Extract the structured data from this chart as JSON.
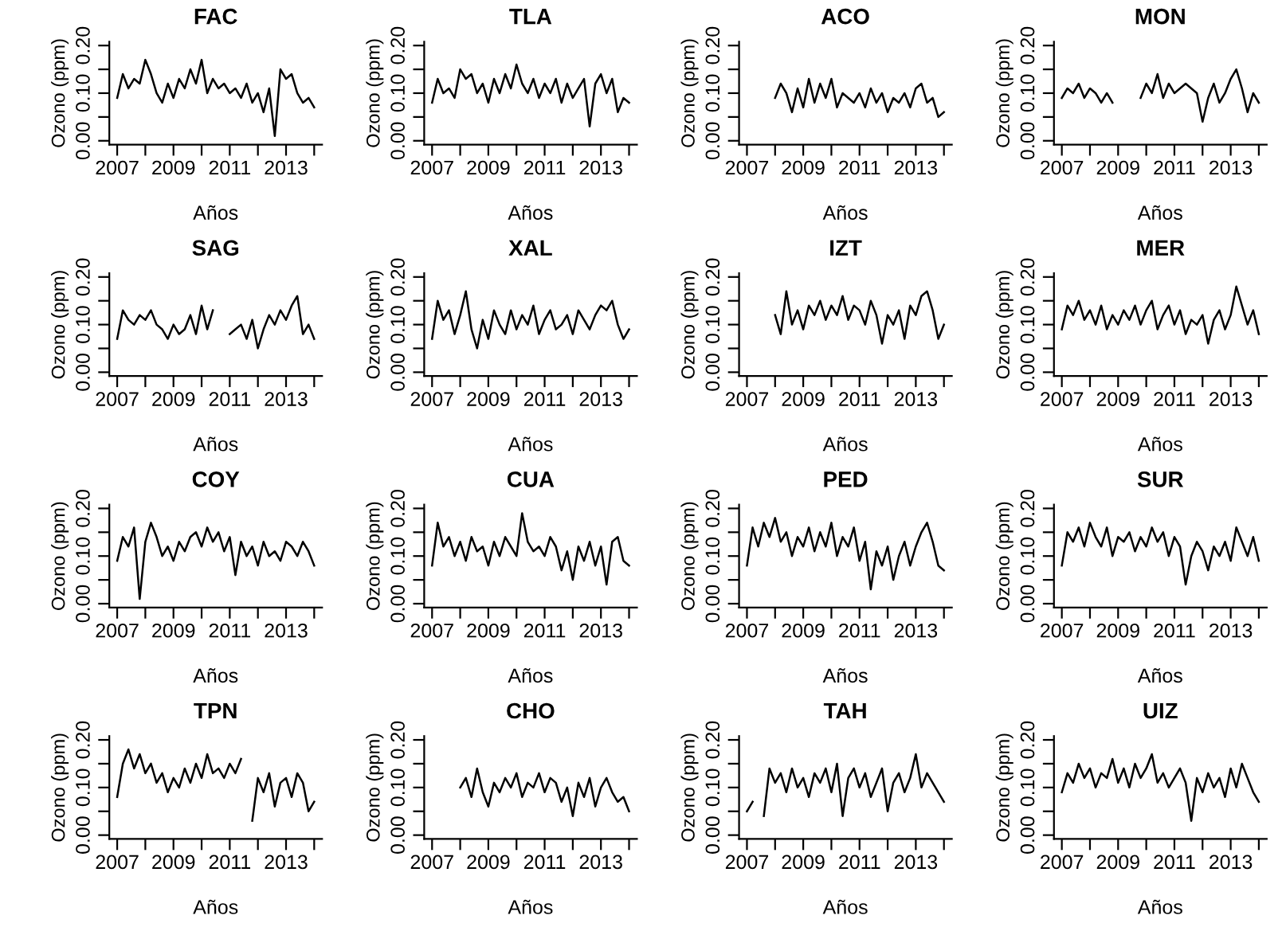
{
  "chart_data": [
    {
      "type": "line",
      "title": "FAC",
      "xlabel": "Años",
      "ylabel": "Ozono (ppm)",
      "xlim": [
        2006.72,
        2014.28
      ],
      "ylim": [
        -0.008,
        0.208
      ],
      "xticks": [
        2007,
        {
          "value": 2008,
          "label": null
        },
        2009,
        {
          "value": 2010,
          "label": null
        },
        2011,
        {
          "value": 2012,
          "label": null
        },
        2013,
        {
          "value": 2014,
          "label": null
        }
      ],
      "yticks": [
        {
          "value": 0,
          "label": "0.00"
        },
        {
          "value": 0.05,
          "label": null
        },
        {
          "value": 0.1,
          "label": "0.10"
        },
        {
          "value": 0.15,
          "label": null
        },
        {
          "value": 0.2,
          "label": "0.20"
        }
      ],
      "x": [
        2007.0,
        2007.2,
        2007.4,
        2007.6,
        2007.8,
        2008.0,
        2008.2,
        2008.4,
        2008.6,
        2008.8,
        2009.0,
        2009.2,
        2009.4,
        2009.6,
        2009.8,
        2010.0,
        2010.2,
        2010.4,
        2010.6,
        2010.8,
        2011.0,
        2011.2,
        2011.4,
        2011.6,
        2011.8,
        2012.0,
        2012.2,
        2012.4,
        2012.6,
        2012.8,
        2013.0,
        2013.2,
        2013.4,
        2013.6,
        2013.8,
        2014.0
      ],
      "series": [
        {
          "color": "#000000",
          "values": [
            0.09,
            0.14,
            0.11,
            0.13,
            0.12,
            0.17,
            0.14,
            0.1,
            0.08,
            0.12,
            0.09,
            0.13,
            0.11,
            0.15,
            0.12,
            0.17,
            0.1,
            0.13,
            0.11,
            0.12,
            0.1,
            0.11,
            0.09,
            0.12,
            0.08,
            0.1,
            0.06,
            0.11,
            0.01,
            0.15,
            0.13,
            0.14,
            0.1,
            0.08,
            0.09,
            0.07
          ]
        }
      ]
    },
    {
      "type": "line",
      "title": "TLA",
      "xlabel": "Años",
      "ylabel": "Ozono (ppm)",
      "xlim": [
        2006.72,
        2014.28
      ],
      "ylim": [
        -0.008,
        0.208
      ],
      "xticks": [
        2007,
        {
          "value": 2008,
          "label": null
        },
        2009,
        {
          "value": 2010,
          "label": null
        },
        2011,
        {
          "value": 2012,
          "label": null
        },
        2013,
        {
          "value": 2014,
          "label": null
        }
      ],
      "yticks": [
        {
          "value": 0,
          "label": "0.00"
        },
        {
          "value": 0.05,
          "label": null
        },
        {
          "value": 0.1,
          "label": "0.10"
        },
        {
          "value": 0.15,
          "label": null
        },
        {
          "value": 0.2,
          "label": "0.20"
        }
      ],
      "x": [
        2007.0,
        2007.2,
        2007.4,
        2007.6,
        2007.8,
        2008.0,
        2008.2,
        2008.4,
        2008.6,
        2008.8,
        2009.0,
        2009.2,
        2009.4,
        2009.6,
        2009.8,
        2010.0,
        2010.2,
        2010.4,
        2010.6,
        2010.8,
        2011.0,
        2011.2,
        2011.4,
        2011.6,
        2011.8,
        2012.0,
        2012.2,
        2012.4,
        2012.6,
        2012.8,
        2013.0,
        2013.2,
        2013.4,
        2013.6,
        2013.8,
        2014.0
      ],
      "series": [
        {
          "color": "#000000",
          "values": [
            0.08,
            0.13,
            0.1,
            0.11,
            0.09,
            0.15,
            0.13,
            0.14,
            0.1,
            0.12,
            0.08,
            0.13,
            0.1,
            0.14,
            0.11,
            0.16,
            0.12,
            0.1,
            0.13,
            0.09,
            0.12,
            0.1,
            0.13,
            0.08,
            0.12,
            0.09,
            0.11,
            0.13,
            0.03,
            0.12,
            0.14,
            0.1,
            0.13,
            0.06,
            0.09,
            0.08
          ]
        }
      ]
    },
    {
      "type": "line",
      "title": "ACO",
      "xlabel": "Años",
      "ylabel": "Ozono (ppm)",
      "xlim": [
        2006.72,
        2014.28
      ],
      "ylim": [
        -0.008,
        0.208
      ],
      "xticks": [
        2007,
        {
          "value": 2008,
          "label": null
        },
        2009,
        {
          "value": 2010,
          "label": null
        },
        2011,
        {
          "value": 2012,
          "label": null
        },
        2013,
        {
          "value": 2014,
          "label": null
        }
      ],
      "yticks": [
        {
          "value": 0,
          "label": "0.00"
        },
        {
          "value": 0.05,
          "label": null
        },
        {
          "value": 0.1,
          "label": "0.10"
        },
        {
          "value": 0.15,
          "label": null
        },
        {
          "value": 0.2,
          "label": "0.20"
        }
      ],
      "x": [
        2008.0,
        2008.2,
        2008.4,
        2008.6,
        2008.8,
        2009.0,
        2009.2,
        2009.4,
        2009.6,
        2009.8,
        2010.0,
        2010.2,
        2010.4,
        2010.6,
        2010.8,
        2011.0,
        2011.2,
        2011.4,
        2011.6,
        2011.8,
        2012.0,
        2012.2,
        2012.4,
        2012.6,
        2012.8,
        2013.0,
        2013.2,
        2013.4,
        2013.6,
        2013.8,
        2014.0
      ],
      "series": [
        {
          "color": "#000000",
          "values": [
            0.09,
            0.12,
            0.1,
            0.06,
            0.11,
            0.07,
            0.13,
            0.08,
            0.12,
            0.09,
            0.13,
            0.07,
            0.1,
            0.09,
            0.08,
            0.1,
            0.07,
            0.11,
            0.08,
            0.1,
            0.06,
            0.09,
            0.08,
            0.1,
            0.07,
            0.11,
            0.12,
            0.08,
            0.09,
            0.05,
            0.06
          ]
        }
      ]
    },
    {
      "type": "line",
      "title": "MON",
      "xlabel": "Años",
      "ylabel": "Ozono (ppm)",
      "xlim": [
        2006.72,
        2014.28
      ],
      "ylim": [
        -0.008,
        0.208
      ],
      "xticks": [
        2007,
        {
          "value": 2008,
          "label": null
        },
        2009,
        {
          "value": 2010,
          "label": null
        },
        2011,
        {
          "value": 2012,
          "label": null
        },
        2013,
        {
          "value": 2014,
          "label": null
        }
      ],
      "yticks": [
        {
          "value": 0,
          "label": "0.00"
        },
        {
          "value": 0.05,
          "label": null
        },
        {
          "value": 0.1,
          "label": "0.10"
        },
        {
          "value": 0.15,
          "label": null
        },
        {
          "value": 0.2,
          "label": "0.20"
        }
      ],
      "x": [
        2007.0,
        2007.2,
        2007.4,
        2007.6,
        2007.8,
        2008.0,
        2008.2,
        2008.4,
        2008.6,
        2008.8,
        2009.0,
        2009.2,
        2009.4,
        2009.6,
        2009.8,
        2010.0,
        2010.2,
        2010.4,
        2010.6,
        2010.8,
        2011.0,
        2011.2,
        2011.4,
        2011.6,
        2011.8,
        2012.0,
        2012.2,
        2012.4,
        2012.6,
        2012.8,
        2013.0,
        2013.2,
        2013.4,
        2013.6,
        2013.8,
        2014.0
      ],
      "series": [
        {
          "color": "#000000",
          "values": [
            0.09,
            0.11,
            0.1,
            0.12,
            0.09,
            0.11,
            0.1,
            0.08,
            0.1,
            0.08,
            null,
            null,
            null,
            null,
            0.09,
            0.12,
            0.1,
            0.14,
            0.09,
            0.12,
            0.1,
            0.11,
            0.12,
            0.11,
            0.1,
            0.04,
            0.09,
            0.12,
            0.08,
            0.1,
            0.13,
            0.15,
            0.11,
            0.06,
            0.1,
            0.08
          ]
        }
      ]
    },
    {
      "type": "line",
      "title": "SAG",
      "xlabel": "Años",
      "ylabel": "Ozono (ppm)",
      "xlim": [
        2006.72,
        2014.28
      ],
      "ylim": [
        -0.008,
        0.208
      ],
      "xticks": [
        2007,
        {
          "value": 2008,
          "label": null
        },
        2009,
        {
          "value": 2010,
          "label": null
        },
        2011,
        {
          "value": 2012,
          "label": null
        },
        2013,
        {
          "value": 2014,
          "label": null
        }
      ],
      "yticks": [
        {
          "value": 0,
          "label": "0.00"
        },
        {
          "value": 0.05,
          "label": null
        },
        {
          "value": 0.1,
          "label": "0.10"
        },
        {
          "value": 0.15,
          "label": null
        },
        {
          "value": 0.2,
          "label": "0.20"
        }
      ],
      "x": [
        2007.0,
        2007.2,
        2007.4,
        2007.6,
        2007.8,
        2008.0,
        2008.2,
        2008.4,
        2008.6,
        2008.8,
        2009.0,
        2009.2,
        2009.4,
        2009.6,
        2009.8,
        2010.0,
        2010.2,
        2010.4,
        2010.6,
        2010.8,
        2011.0,
        2011.2,
        2011.4,
        2011.6,
        2011.8,
        2012.0,
        2012.2,
        2012.4,
        2012.6,
        2012.8,
        2013.0,
        2013.2,
        2013.4,
        2013.6,
        2013.8,
        2014.0
      ],
      "series": [
        {
          "color": "#000000",
          "values": [
            0.07,
            0.13,
            0.11,
            0.1,
            0.12,
            0.11,
            0.13,
            0.1,
            0.09,
            0.07,
            0.1,
            0.08,
            0.09,
            0.12,
            0.08,
            0.14,
            0.09,
            0.13,
            null,
            null,
            0.08,
            0.09,
            0.1,
            0.07,
            0.11,
            0.05,
            0.09,
            0.12,
            0.1,
            0.13,
            0.11,
            0.14,
            0.16,
            0.08,
            0.1,
            0.07
          ]
        }
      ]
    },
    {
      "type": "line",
      "title": "XAL",
      "xlabel": "Años",
      "ylabel": "Ozono (ppm)",
      "xlim": [
        2006.72,
        2014.28
      ],
      "ylim": [
        -0.008,
        0.208
      ],
      "xticks": [
        2007,
        {
          "value": 2008,
          "label": null
        },
        2009,
        {
          "value": 2010,
          "label": null
        },
        2011,
        {
          "value": 2012,
          "label": null
        },
        2013,
        {
          "value": 2014,
          "label": null
        }
      ],
      "yticks": [
        {
          "value": 0,
          "label": "0.00"
        },
        {
          "value": 0.05,
          "label": null
        },
        {
          "value": 0.1,
          "label": "0.10"
        },
        {
          "value": 0.15,
          "label": null
        },
        {
          "value": 0.2,
          "label": "0.20"
        }
      ],
      "x": [
        2007.0,
        2007.2,
        2007.4,
        2007.6,
        2007.8,
        2008.0,
        2008.2,
        2008.4,
        2008.6,
        2008.8,
        2009.0,
        2009.2,
        2009.4,
        2009.6,
        2009.8,
        2010.0,
        2010.2,
        2010.4,
        2010.6,
        2010.8,
        2011.0,
        2011.2,
        2011.4,
        2011.6,
        2011.8,
        2012.0,
        2012.2,
        2012.4,
        2012.6,
        2012.8,
        2013.0,
        2013.2,
        2013.4,
        2013.6,
        2013.8,
        2014.0
      ],
      "series": [
        {
          "color": "#000000",
          "values": [
            0.07,
            0.15,
            0.11,
            0.13,
            0.08,
            0.12,
            0.17,
            0.09,
            0.05,
            0.11,
            0.07,
            0.13,
            0.1,
            0.08,
            0.13,
            0.09,
            0.12,
            0.1,
            0.14,
            0.08,
            0.11,
            0.13,
            0.09,
            0.1,
            0.12,
            0.08,
            0.13,
            0.11,
            0.09,
            0.12,
            0.14,
            0.13,
            0.15,
            0.1,
            0.07,
            0.09
          ]
        }
      ]
    },
    {
      "type": "line",
      "title": "IZT",
      "xlabel": "Años",
      "ylabel": "Ozono (ppm)",
      "xlim": [
        2006.72,
        2014.28
      ],
      "ylim": [
        -0.008,
        0.208
      ],
      "xticks": [
        2007,
        {
          "value": 2008,
          "label": null
        },
        2009,
        {
          "value": 2010,
          "label": null
        },
        2011,
        {
          "value": 2012,
          "label": null
        },
        2013,
        {
          "value": 2014,
          "label": null
        }
      ],
      "yticks": [
        {
          "value": 0,
          "label": "0.00"
        },
        {
          "value": 0.05,
          "label": null
        },
        {
          "value": 0.1,
          "label": "0.10"
        },
        {
          "value": 0.15,
          "label": null
        },
        {
          "value": 0.2,
          "label": "0.20"
        }
      ],
      "x": [
        2008.0,
        2008.2,
        2008.4,
        2008.6,
        2008.8,
        2009.0,
        2009.2,
        2009.4,
        2009.6,
        2009.8,
        2010.0,
        2010.2,
        2010.4,
        2010.6,
        2010.8,
        2011.0,
        2011.2,
        2011.4,
        2011.6,
        2011.8,
        2012.0,
        2012.2,
        2012.4,
        2012.6,
        2012.8,
        2013.0,
        2013.2,
        2013.4,
        2013.6,
        2013.8,
        2014.0
      ],
      "series": [
        {
          "color": "#000000",
          "values": [
            0.12,
            0.08,
            0.17,
            0.1,
            0.13,
            0.09,
            0.14,
            0.12,
            0.15,
            0.11,
            0.14,
            0.12,
            0.16,
            0.11,
            0.14,
            0.13,
            0.1,
            0.15,
            0.12,
            0.06,
            0.12,
            0.1,
            0.13,
            0.07,
            0.14,
            0.12,
            0.16,
            0.17,
            0.13,
            0.07,
            0.1
          ]
        }
      ]
    },
    {
      "type": "line",
      "title": "MER",
      "xlabel": "Años",
      "ylabel": "Ozono (ppm)",
      "xlim": [
        2006.72,
        2014.28
      ],
      "ylim": [
        -0.008,
        0.208
      ],
      "xticks": [
        2007,
        {
          "value": 2008,
          "label": null
        },
        2009,
        {
          "value": 2010,
          "label": null
        },
        2011,
        {
          "value": 2012,
          "label": null
        },
        2013,
        {
          "value": 2014,
          "label": null
        }
      ],
      "yticks": [
        {
          "value": 0,
          "label": "0.00"
        },
        {
          "value": 0.05,
          "label": null
        },
        {
          "value": 0.1,
          "label": "0.10"
        },
        {
          "value": 0.15,
          "label": null
        },
        {
          "value": 0.2,
          "label": "0.20"
        }
      ],
      "x": [
        2007.0,
        2007.2,
        2007.4,
        2007.6,
        2007.8,
        2008.0,
        2008.2,
        2008.4,
        2008.6,
        2008.8,
        2009.0,
        2009.2,
        2009.4,
        2009.6,
        2009.8,
        2010.0,
        2010.2,
        2010.4,
        2010.6,
        2010.8,
        2011.0,
        2011.2,
        2011.4,
        2011.6,
        2011.8,
        2012.0,
        2012.2,
        2012.4,
        2012.6,
        2012.8,
        2013.0,
        2013.2,
        2013.4,
        2013.6,
        2013.8,
        2014.0
      ],
      "series": [
        {
          "color": "#000000",
          "values": [
            0.09,
            0.14,
            0.12,
            0.15,
            0.11,
            0.13,
            0.1,
            0.14,
            0.09,
            0.12,
            0.1,
            0.13,
            0.11,
            0.14,
            0.1,
            0.13,
            0.15,
            0.09,
            0.12,
            0.14,
            0.1,
            0.13,
            0.08,
            0.11,
            0.1,
            0.12,
            0.06,
            0.11,
            0.13,
            0.09,
            0.12,
            0.18,
            0.14,
            0.1,
            0.13,
            0.08
          ]
        }
      ]
    },
    {
      "type": "line",
      "title": "COY",
      "xlabel": "Años",
      "ylabel": "Ozono (ppm)",
      "xlim": [
        2006.72,
        2014.28
      ],
      "ylim": [
        -0.008,
        0.208
      ],
      "xticks": [
        2007,
        {
          "value": 2008,
          "label": null
        },
        2009,
        {
          "value": 2010,
          "label": null
        },
        2011,
        {
          "value": 2012,
          "label": null
        },
        2013,
        {
          "value": 2014,
          "label": null
        }
      ],
      "yticks": [
        {
          "value": 0,
          "label": "0.00"
        },
        {
          "value": 0.05,
          "label": null
        },
        {
          "value": 0.1,
          "label": "0.10"
        },
        {
          "value": 0.15,
          "label": null
        },
        {
          "value": 0.2,
          "label": "0.20"
        }
      ],
      "x": [
        2007.0,
        2007.2,
        2007.4,
        2007.6,
        2007.8,
        2008.0,
        2008.2,
        2008.4,
        2008.6,
        2008.8,
        2009.0,
        2009.2,
        2009.4,
        2009.6,
        2009.8,
        2010.0,
        2010.2,
        2010.4,
        2010.6,
        2010.8,
        2011.0,
        2011.2,
        2011.4,
        2011.6,
        2011.8,
        2012.0,
        2012.2,
        2012.4,
        2012.6,
        2012.8,
        2013.0,
        2013.2,
        2013.4,
        2013.6,
        2013.8,
        2014.0
      ],
      "series": [
        {
          "color": "#000000",
          "values": [
            0.09,
            0.14,
            0.12,
            0.16,
            0.01,
            0.13,
            0.17,
            0.14,
            0.1,
            0.12,
            0.09,
            0.13,
            0.11,
            0.14,
            0.15,
            0.12,
            0.16,
            0.13,
            0.15,
            0.11,
            0.14,
            0.06,
            0.13,
            0.1,
            0.12,
            0.08,
            0.13,
            0.1,
            0.11,
            0.09,
            0.13,
            0.12,
            0.1,
            0.13,
            0.11,
            0.08
          ]
        }
      ]
    },
    {
      "type": "line",
      "title": "CUA",
      "xlabel": "Años",
      "ylabel": "Ozono (ppm)",
      "xlim": [
        2006.72,
        2014.28
      ],
      "ylim": [
        -0.008,
        0.208
      ],
      "xticks": [
        2007,
        {
          "value": 2008,
          "label": null
        },
        2009,
        {
          "value": 2010,
          "label": null
        },
        2011,
        {
          "value": 2012,
          "label": null
        },
        2013,
        {
          "value": 2014,
          "label": null
        }
      ],
      "yticks": [
        {
          "value": 0,
          "label": "0.00"
        },
        {
          "value": 0.05,
          "label": null
        },
        {
          "value": 0.1,
          "label": "0.10"
        },
        {
          "value": 0.15,
          "label": null
        },
        {
          "value": 0.2,
          "label": "0.20"
        }
      ],
      "x": [
        2007.0,
        2007.2,
        2007.4,
        2007.6,
        2007.8,
        2008.0,
        2008.2,
        2008.4,
        2008.6,
        2008.8,
        2009.0,
        2009.2,
        2009.4,
        2009.6,
        2009.8,
        2010.0,
        2010.2,
        2010.4,
        2010.6,
        2010.8,
        2011.0,
        2011.2,
        2011.4,
        2011.6,
        2011.8,
        2012.0,
        2012.2,
        2012.4,
        2012.6,
        2012.8,
        2013.0,
        2013.2,
        2013.4,
        2013.6,
        2013.8,
        2014.0
      ],
      "series": [
        {
          "color": "#000000",
          "values": [
            0.08,
            0.17,
            0.12,
            0.14,
            0.1,
            0.13,
            0.09,
            0.14,
            0.11,
            0.12,
            0.08,
            0.13,
            0.1,
            0.14,
            0.12,
            0.1,
            0.19,
            0.13,
            0.11,
            0.12,
            0.1,
            0.14,
            0.12,
            0.07,
            0.11,
            0.05,
            0.12,
            0.09,
            0.13,
            0.08,
            0.12,
            0.04,
            0.13,
            0.14,
            0.09,
            0.08
          ]
        }
      ]
    },
    {
      "type": "line",
      "title": "PED",
      "xlabel": "Años",
      "ylabel": "Ozono (ppm)",
      "xlim": [
        2006.72,
        2014.28
      ],
      "ylim": [
        -0.008,
        0.208
      ],
      "xticks": [
        2007,
        {
          "value": 2008,
          "label": null
        },
        2009,
        {
          "value": 2010,
          "label": null
        },
        2011,
        {
          "value": 2012,
          "label": null
        },
        2013,
        {
          "value": 2014,
          "label": null
        }
      ],
      "yticks": [
        {
          "value": 0,
          "label": "0.00"
        },
        {
          "value": 0.05,
          "label": null
        },
        {
          "value": 0.1,
          "label": "0.10"
        },
        {
          "value": 0.15,
          "label": null
        },
        {
          "value": 0.2,
          "label": "0.20"
        }
      ],
      "x": [
        2007.0,
        2007.2,
        2007.4,
        2007.6,
        2007.8,
        2008.0,
        2008.2,
        2008.4,
        2008.6,
        2008.8,
        2009.0,
        2009.2,
        2009.4,
        2009.6,
        2009.8,
        2010.0,
        2010.2,
        2010.4,
        2010.6,
        2010.8,
        2011.0,
        2011.2,
        2011.4,
        2011.6,
        2011.8,
        2012.0,
        2012.2,
        2012.4,
        2012.6,
        2012.8,
        2013.0,
        2013.2,
        2013.4,
        2013.6,
        2013.8,
        2014.0
      ],
      "series": [
        {
          "color": "#000000",
          "values": [
            0.08,
            0.16,
            0.12,
            0.17,
            0.14,
            0.18,
            0.13,
            0.15,
            0.1,
            0.14,
            0.12,
            0.16,
            0.11,
            0.15,
            0.12,
            0.17,
            0.1,
            0.14,
            0.12,
            0.16,
            0.09,
            0.13,
            0.03,
            0.11,
            0.08,
            0.12,
            0.05,
            0.1,
            0.13,
            0.08,
            0.12,
            0.15,
            0.17,
            0.13,
            0.08,
            0.07
          ]
        }
      ]
    },
    {
      "type": "line",
      "title": "SUR",
      "xlabel": "Años",
      "ylabel": "Ozono (ppm)",
      "xlim": [
        2006.72,
        2014.28
      ],
      "ylim": [
        -0.008,
        0.208
      ],
      "xticks": [
        2007,
        {
          "value": 2008,
          "label": null
        },
        2009,
        {
          "value": 2010,
          "label": null
        },
        2011,
        {
          "value": 2012,
          "label": null
        },
        2013,
        {
          "value": 2014,
          "label": null
        }
      ],
      "yticks": [
        {
          "value": 0,
          "label": "0.00"
        },
        {
          "value": 0.05,
          "label": null
        },
        {
          "value": 0.1,
          "label": "0.10"
        },
        {
          "value": 0.15,
          "label": null
        },
        {
          "value": 0.2,
          "label": "0.20"
        }
      ],
      "x": [
        2007.0,
        2007.2,
        2007.4,
        2007.6,
        2007.8,
        2008.0,
        2008.2,
        2008.4,
        2008.6,
        2008.8,
        2009.0,
        2009.2,
        2009.4,
        2009.6,
        2009.8,
        2010.0,
        2010.2,
        2010.4,
        2010.6,
        2010.8,
        2011.0,
        2011.2,
        2011.4,
        2011.6,
        2011.8,
        2012.0,
        2012.2,
        2012.4,
        2012.6,
        2012.8,
        2013.0,
        2013.2,
        2013.4,
        2013.6,
        2013.8,
        2014.0
      ],
      "series": [
        {
          "color": "#000000",
          "values": [
            0.08,
            0.15,
            0.13,
            0.16,
            0.12,
            0.17,
            0.14,
            0.12,
            0.16,
            0.1,
            0.14,
            0.13,
            0.15,
            0.11,
            0.14,
            0.12,
            0.16,
            0.13,
            0.15,
            0.1,
            0.14,
            0.12,
            0.04,
            0.1,
            0.13,
            0.11,
            0.07,
            0.12,
            0.1,
            0.13,
            0.09,
            0.16,
            0.13,
            0.1,
            0.14,
            0.09
          ]
        }
      ]
    },
    {
      "type": "line",
      "title": "TPN",
      "xlabel": "Años",
      "ylabel": "Ozono (ppm)",
      "xlim": [
        2006.72,
        2014.28
      ],
      "ylim": [
        -0.008,
        0.208
      ],
      "xticks": [
        2007,
        {
          "value": 2008,
          "label": null
        },
        2009,
        {
          "value": 2010,
          "label": null
        },
        2011,
        {
          "value": 2012,
          "label": null
        },
        2013,
        {
          "value": 2014,
          "label": null
        }
      ],
      "yticks": [
        {
          "value": 0,
          "label": "0.00"
        },
        {
          "value": 0.05,
          "label": null
        },
        {
          "value": 0.1,
          "label": "0.10"
        },
        {
          "value": 0.15,
          "label": null
        },
        {
          "value": 0.2,
          "label": "0.20"
        }
      ],
      "x": [
        2007.0,
        2007.2,
        2007.4,
        2007.6,
        2007.8,
        2008.0,
        2008.2,
        2008.4,
        2008.6,
        2008.8,
        2009.0,
        2009.2,
        2009.4,
        2009.6,
        2009.8,
        2010.0,
        2010.2,
        2010.4,
        2010.6,
        2010.8,
        2011.0,
        2011.2,
        2011.4,
        2011.6,
        2011.8,
        2012.0,
        2012.2,
        2012.4,
        2012.6,
        2012.8,
        2013.0,
        2013.2,
        2013.4,
        2013.6,
        2013.8,
        2014.0
      ],
      "series": [
        {
          "color": "#000000",
          "values": [
            0.08,
            0.15,
            0.18,
            0.14,
            0.17,
            0.13,
            0.15,
            0.11,
            0.13,
            0.09,
            0.12,
            0.1,
            0.14,
            0.11,
            0.15,
            0.12,
            0.17,
            0.13,
            0.14,
            0.12,
            0.15,
            0.13,
            0.16,
            null,
            0.03,
            0.12,
            0.09,
            0.13,
            0.06,
            0.11,
            0.12,
            0.08,
            0.13,
            0.11,
            0.05,
            0.07
          ]
        }
      ]
    },
    {
      "type": "line",
      "title": "CHO",
      "xlabel": "Años",
      "ylabel": "Ozono (ppm)",
      "xlim": [
        2006.72,
        2014.28
      ],
      "ylim": [
        -0.008,
        0.208
      ],
      "xticks": [
        2007,
        {
          "value": 2008,
          "label": null
        },
        2009,
        {
          "value": 2010,
          "label": null
        },
        2011,
        {
          "value": 2012,
          "label": null
        },
        2013,
        {
          "value": 2014,
          "label": null
        }
      ],
      "yticks": [
        {
          "value": 0,
          "label": "0.00"
        },
        {
          "value": 0.05,
          "label": null
        },
        {
          "value": 0.1,
          "label": "0.10"
        },
        {
          "value": 0.15,
          "label": null
        },
        {
          "value": 0.2,
          "label": "0.20"
        }
      ],
      "x": [
        2008.0,
        2008.2,
        2008.4,
        2008.6,
        2008.8,
        2009.0,
        2009.2,
        2009.4,
        2009.6,
        2009.8,
        2010.0,
        2010.2,
        2010.4,
        2010.6,
        2010.8,
        2011.0,
        2011.2,
        2011.4,
        2011.6,
        2011.8,
        2012.0,
        2012.2,
        2012.4,
        2012.6,
        2012.8,
        2013.0,
        2013.2,
        2013.4,
        2013.6,
        2013.8,
        2014.0
      ],
      "series": [
        {
          "color": "#000000",
          "values": [
            0.1,
            0.12,
            0.08,
            0.14,
            0.09,
            0.06,
            0.11,
            0.09,
            0.12,
            0.1,
            0.13,
            0.08,
            0.11,
            0.1,
            0.13,
            0.09,
            0.12,
            0.11,
            0.07,
            0.1,
            0.04,
            0.11,
            0.08,
            0.12,
            0.06,
            0.1,
            0.12,
            0.09,
            0.07,
            0.08,
            0.05
          ]
        }
      ]
    },
    {
      "type": "line",
      "title": "TAH",
      "xlabel": "Años",
      "ylabel": "Ozono (ppm)",
      "xlim": [
        2006.72,
        2014.28
      ],
      "ylim": [
        -0.008,
        0.208
      ],
      "xticks": [
        2007,
        {
          "value": 2008,
          "label": null
        },
        2009,
        {
          "value": 2010,
          "label": null
        },
        2011,
        {
          "value": 2012,
          "label": null
        },
        2013,
        {
          "value": 2014,
          "label": null
        }
      ],
      "yticks": [
        {
          "value": 0,
          "label": "0.00"
        },
        {
          "value": 0.05,
          "label": null
        },
        {
          "value": 0.1,
          "label": "0.10"
        },
        {
          "value": 0.15,
          "label": null
        },
        {
          "value": 0.2,
          "label": "0.20"
        }
      ],
      "x": [
        2007.0,
        2007.2,
        2007.4,
        2007.6,
        2007.8,
        2008.0,
        2008.2,
        2008.4,
        2008.6,
        2008.8,
        2009.0,
        2009.2,
        2009.4,
        2009.6,
        2009.8,
        2010.0,
        2010.2,
        2010.4,
        2010.6,
        2010.8,
        2011.0,
        2011.2,
        2011.4,
        2011.6,
        2011.8,
        2012.0,
        2012.2,
        2012.4,
        2012.6,
        2012.8,
        2013.0,
        2013.2,
        2013.4,
        2013.6,
        2013.8,
        2014.0
      ],
      "series": [
        {
          "color": "#000000",
          "values": [
            0.05,
            0.07,
            null,
            0.04,
            0.14,
            0.11,
            0.13,
            0.09,
            0.14,
            0.1,
            0.12,
            0.08,
            0.13,
            0.11,
            0.14,
            0.09,
            0.15,
            0.04,
            0.12,
            0.14,
            0.1,
            0.13,
            0.08,
            0.11,
            0.14,
            0.05,
            0.11,
            0.13,
            0.09,
            0.12,
            0.17,
            0.1,
            0.13,
            0.11,
            0.09,
            0.07
          ]
        }
      ]
    },
    {
      "type": "line",
      "title": "UIZ",
      "xlabel": "Años",
      "ylabel": "Ozono (ppm)",
      "xlim": [
        2006.72,
        2014.28
      ],
      "ylim": [
        -0.008,
        0.208
      ],
      "xticks": [
        2007,
        {
          "value": 2008,
          "label": null
        },
        2009,
        {
          "value": 2010,
          "label": null
        },
        2011,
        {
          "value": 2012,
          "label": null
        },
        2013,
        {
          "value": 2014,
          "label": null
        }
      ],
      "yticks": [
        {
          "value": 0,
          "label": "0.00"
        },
        {
          "value": 0.05,
          "label": null
        },
        {
          "value": 0.1,
          "label": "0.10"
        },
        {
          "value": 0.15,
          "label": null
        },
        {
          "value": 0.2,
          "label": "0.20"
        }
      ],
      "x": [
        2007.0,
        2007.2,
        2007.4,
        2007.6,
        2007.8,
        2008.0,
        2008.2,
        2008.4,
        2008.6,
        2008.8,
        2009.0,
        2009.2,
        2009.4,
        2009.6,
        2009.8,
        2010.0,
        2010.2,
        2010.4,
        2010.6,
        2010.8,
        2011.0,
        2011.2,
        2011.4,
        2011.6,
        2011.8,
        2012.0,
        2012.2,
        2012.4,
        2012.6,
        2012.8,
        2013.0,
        2013.2,
        2013.4,
        2013.6,
        2013.8,
        2014.0
      ],
      "series": [
        {
          "color": "#000000",
          "values": [
            0.09,
            0.13,
            0.11,
            0.15,
            0.12,
            0.14,
            0.1,
            0.13,
            0.12,
            0.16,
            0.11,
            0.14,
            0.1,
            0.15,
            0.12,
            0.14,
            0.17,
            0.11,
            0.13,
            0.1,
            0.12,
            0.14,
            0.11,
            0.03,
            0.12,
            0.09,
            0.13,
            0.1,
            0.12,
            0.08,
            0.14,
            0.1,
            0.15,
            0.12,
            0.09,
            0.07
          ]
        }
      ]
    }
  ]
}
